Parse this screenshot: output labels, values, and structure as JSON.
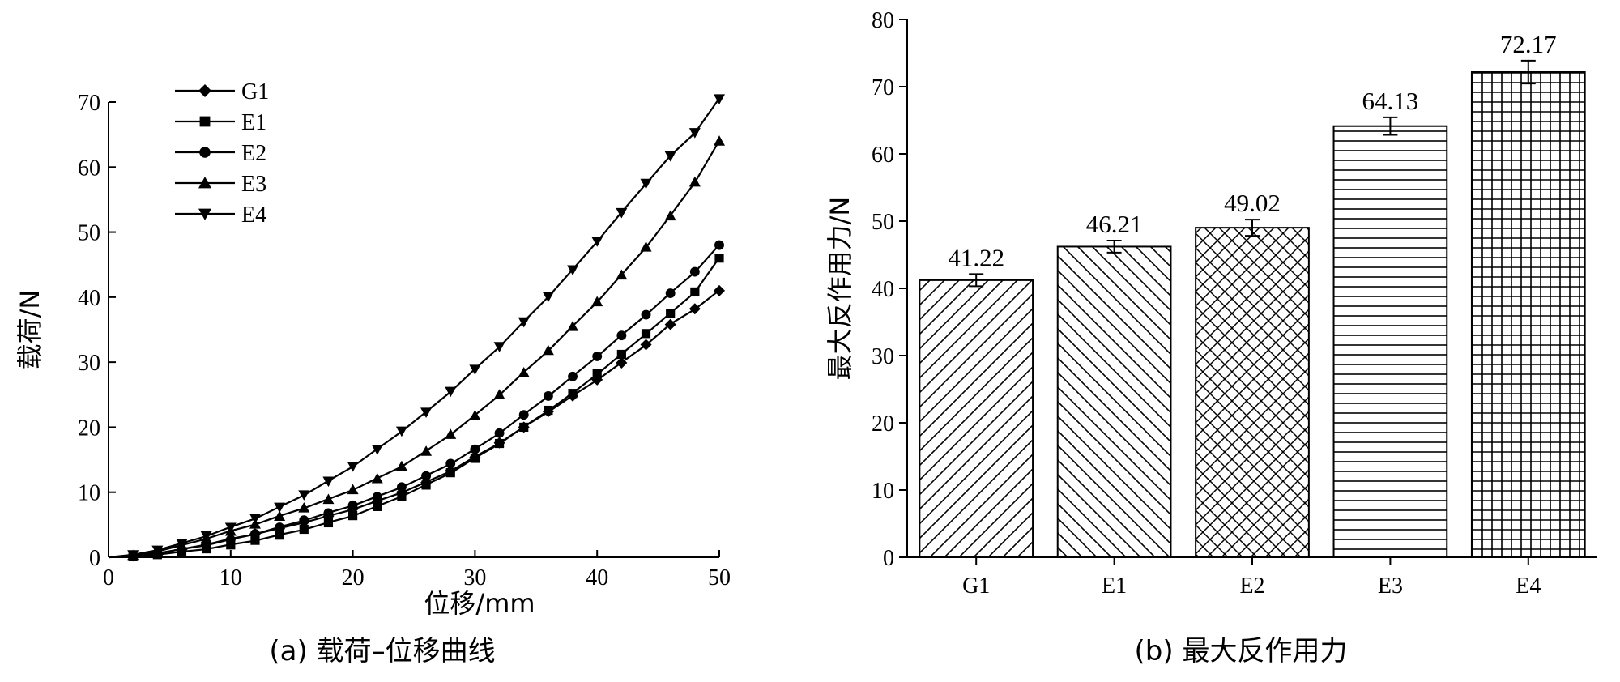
{
  "chart_data": [
    {
      "type": "line",
      "title": "(a) 载荷–位移曲线",
      "xlabel": "位移/mm",
      "ylabel": "载荷/N",
      "xlim": [
        0,
        50
      ],
      "ylim": [
        0,
        70
      ],
      "xticks": [
        "0",
        "10",
        "20",
        "30",
        "40",
        "50"
      ],
      "yticks": [
        "0",
        "10",
        "20",
        "30",
        "40",
        "50",
        "60",
        "70"
      ],
      "legend": {
        "position": "top-left"
      },
      "series": [
        {
          "name": "G1",
          "marker": "diamond",
          "x": [
            0,
            2,
            4,
            6,
            8,
            10,
            12,
            14,
            16,
            18,
            20,
            22,
            24,
            26,
            28,
            30,
            32,
            34,
            36,
            38,
            40,
            42,
            44,
            46,
            48,
            50
          ],
          "y": [
            0,
            0.2,
            0.6,
            1.2,
            2.0,
            2.8,
            3.6,
            4.4,
            5.4,
            6.3,
            7.4,
            8.6,
            10.0,
            11.5,
            13.3,
            15.4,
            17.6,
            20.0,
            22.4,
            24.8,
            27.3,
            29.9,
            32.7,
            35.8,
            38.2,
            41.0
          ]
        },
        {
          "name": "E1",
          "marker": "square",
          "x": [
            0,
            2,
            4,
            6,
            8,
            10,
            12,
            14,
            16,
            18,
            20,
            22,
            24,
            26,
            28,
            30,
            32,
            34,
            36,
            38,
            40,
            42,
            44,
            46,
            48,
            50
          ],
          "y": [
            0,
            0.1,
            0.4,
            0.8,
            1.3,
            1.9,
            2.6,
            3.4,
            4.3,
            5.3,
            6.4,
            7.8,
            9.4,
            11.1,
            13.0,
            15.2,
            17.5,
            20.0,
            22.6,
            25.2,
            28.2,
            31.2,
            34.4,
            37.5,
            40.8,
            46.0
          ]
        },
        {
          "name": "E2",
          "marker": "circle",
          "x": [
            0,
            2,
            4,
            6,
            8,
            10,
            12,
            14,
            16,
            18,
            20,
            22,
            24,
            26,
            28,
            30,
            32,
            34,
            36,
            38,
            40,
            42,
            44,
            46,
            48,
            50
          ],
          "y": [
            0,
            0.2,
            0.6,
            1.2,
            1.9,
            2.7,
            3.6,
            4.6,
            5.7,
            6.8,
            8.0,
            9.3,
            10.8,
            12.5,
            14.4,
            16.6,
            19.1,
            21.9,
            24.8,
            27.8,
            30.9,
            34.1,
            37.3,
            40.6,
            43.9,
            48.0
          ]
        },
        {
          "name": "E3",
          "marker": "triangle-up",
          "x": [
            0,
            2,
            4,
            6,
            8,
            10,
            12,
            14,
            16,
            18,
            20,
            22,
            24,
            26,
            28,
            30,
            32,
            34,
            36,
            38,
            40,
            42,
            44,
            46,
            48,
            50
          ],
          "y": [
            0,
            0.3,
            0.9,
            1.8,
            2.9,
            4.0,
            5.1,
            6.3,
            7.6,
            8.9,
            10.4,
            12.1,
            14.0,
            16.3,
            18.9,
            21.8,
            25.0,
            28.4,
            31.8,
            35.5,
            39.3,
            43.4,
            47.7,
            52.5,
            57.7,
            64.0
          ]
        },
        {
          "name": "E4",
          "marker": "triangle-down",
          "x": [
            0,
            2,
            4,
            6,
            8,
            10,
            12,
            14,
            16,
            18,
            20,
            22,
            24,
            26,
            28,
            30,
            32,
            34,
            36,
            38,
            40,
            42,
            44,
            46,
            48,
            50
          ],
          "y": [
            0,
            0.4,
            1.1,
            2.1,
            3.3,
            4.6,
            6.0,
            7.7,
            9.6,
            11.7,
            14.0,
            16.6,
            19.4,
            22.3,
            25.5,
            28.9,
            32.4,
            36.2,
            40.1,
            44.2,
            48.6,
            53.0,
            57.5,
            61.7,
            65.3,
            70.5
          ]
        }
      ]
    },
    {
      "type": "bar",
      "title": "(b) 最大反作用力",
      "xlabel": "",
      "ylabel": "最大反作用力/N",
      "ylim": [
        0,
        80
      ],
      "yticks": [
        "0",
        "10",
        "20",
        "30",
        "40",
        "50",
        "60",
        "70",
        "80"
      ],
      "categories": [
        "G1",
        "E1",
        "E2",
        "E3",
        "E4"
      ],
      "values": [
        41.22,
        46.21,
        49.02,
        64.13,
        72.17
      ],
      "value_labels": [
        "41.22",
        "46.21",
        "49.02",
        "64.13",
        "72.17"
      ],
      "errors": [
        0.9,
        0.9,
        1.2,
        1.3,
        1.7
      ],
      "patterns": [
        "diag-up",
        "diag-down",
        "crosshatch",
        "horizontal",
        "grid"
      ]
    }
  ]
}
